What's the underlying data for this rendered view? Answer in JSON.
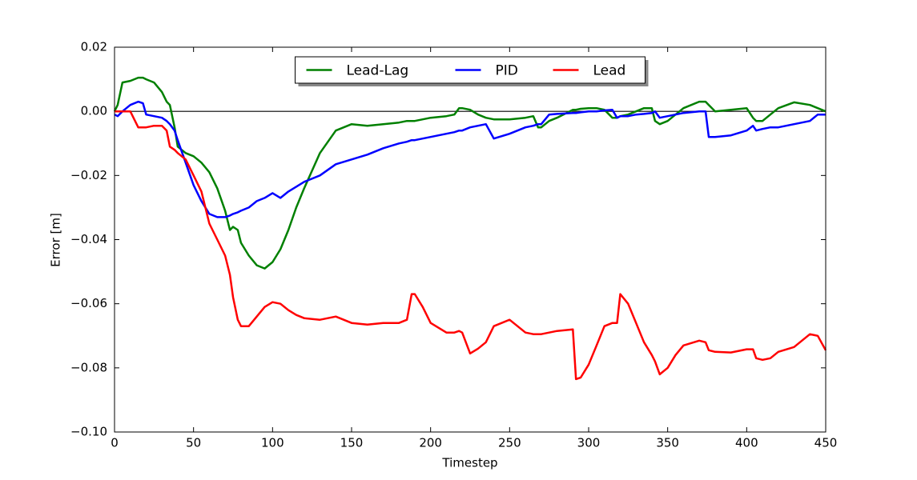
{
  "chart_data": {
    "type": "line",
    "xlabel": "Timestep",
    "ylabel": "Error [m]",
    "x": [
      0,
      2,
      5,
      10,
      15,
      18,
      20,
      25,
      30,
      33,
      35,
      38,
      40,
      45,
      50,
      55,
      60,
      65,
      70,
      73,
      75,
      78,
      80,
      85,
      90,
      95,
      100,
      105,
      110,
      115,
      120,
      130,
      140,
      150,
      160,
      170,
      180,
      185,
      188,
      190,
      195,
      200,
      210,
      215,
      218,
      220,
      225,
      230,
      235,
      240,
      250,
      260,
      265,
      268,
      270,
      275,
      280,
      290,
      292,
      295,
      300,
      305,
      310,
      315,
      318,
      320,
      325,
      330,
      335,
      340,
      342,
      345,
      350,
      355,
      360,
      370,
      374,
      376,
      380,
      390,
      400,
      404,
      406,
      410,
      415,
      420,
      430,
      440,
      445,
      450
    ],
    "series": [
      {
        "name": "Lead-Lag",
        "color": "#008000",
        "values": [
          0.0,
          0.002,
          0.009,
          0.0095,
          0.0105,
          0.0105,
          0.01,
          0.009,
          0.006,
          0.003,
          0.002,
          -0.005,
          -0.011,
          -0.013,
          -0.014,
          -0.016,
          -0.019,
          -0.024,
          -0.031,
          -0.037,
          -0.036,
          -0.037,
          -0.041,
          -0.045,
          -0.048,
          -0.049,
          -0.047,
          -0.043,
          -0.037,
          -0.03,
          -0.024,
          -0.013,
          -0.006,
          -0.004,
          -0.0045,
          -0.004,
          -0.0035,
          -0.003,
          -0.003,
          -0.003,
          -0.0025,
          -0.002,
          -0.0015,
          -0.001,
          0.001,
          0.001,
          0.0005,
          -0.001,
          -0.002,
          -0.0025,
          -0.0025,
          -0.002,
          -0.0015,
          -0.005,
          -0.005,
          -0.003,
          -0.002,
          0.0005,
          0.0005,
          0.0008,
          0.001,
          0.001,
          0.0005,
          -0.002,
          -0.002,
          -0.0015,
          -0.001,
          0.0,
          0.001,
          0.001,
          -0.003,
          -0.004,
          -0.003,
          -0.001,
          0.001,
          0.003,
          0.003,
          0.002,
          0.0,
          0.0005,
          0.001,
          -0.002,
          -0.003,
          -0.003,
          -0.001,
          0.001,
          0.0028,
          0.002,
          0.001,
          0.0
        ]
      },
      {
        "name": "PID",
        "color": "#0000ff",
        "values": [
          -0.001,
          -0.0015,
          0.0,
          0.002,
          0.003,
          0.0025,
          -0.001,
          -0.0015,
          -0.002,
          -0.003,
          -0.004,
          -0.006,
          -0.009,
          -0.016,
          -0.023,
          -0.028,
          -0.032,
          -0.033,
          -0.033,
          -0.0325,
          -0.032,
          -0.0315,
          -0.031,
          -0.03,
          -0.028,
          -0.027,
          -0.0255,
          -0.027,
          -0.025,
          -0.0235,
          -0.022,
          -0.02,
          -0.0165,
          -0.015,
          -0.0135,
          -0.0115,
          -0.01,
          -0.0095,
          -0.009,
          -0.009,
          -0.0085,
          -0.008,
          -0.007,
          -0.0065,
          -0.006,
          -0.006,
          -0.005,
          -0.0045,
          -0.004,
          -0.0085,
          -0.007,
          -0.005,
          -0.0045,
          -0.004,
          -0.004,
          -0.001,
          -0.0008,
          -0.0005,
          -0.0005,
          -0.0003,
          0.0,
          0.0,
          0.0003,
          0.0005,
          -0.002,
          -0.0015,
          -0.0015,
          -0.001,
          -0.0008,
          -0.0005,
          0.0,
          -0.002,
          -0.0015,
          -0.001,
          -0.0005,
          0.0,
          0.0,
          -0.008,
          -0.008,
          -0.0075,
          -0.006,
          -0.0045,
          -0.006,
          -0.0055,
          -0.005,
          -0.005,
          -0.004,
          -0.003,
          -0.001,
          -0.001
        ]
      },
      {
        "name": "Lead",
        "color": "#ff0000",
        "values": [
          0.0,
          0.0,
          0.0,
          0.0,
          -0.005,
          -0.005,
          -0.005,
          -0.0045,
          -0.0045,
          -0.006,
          -0.011,
          -0.012,
          -0.013,
          -0.015,
          -0.02,
          -0.025,
          -0.035,
          -0.04,
          -0.045,
          -0.051,
          -0.058,
          -0.065,
          -0.067,
          -0.067,
          -0.064,
          -0.061,
          -0.0595,
          -0.06,
          -0.062,
          -0.0635,
          -0.0645,
          -0.065,
          -0.064,
          -0.066,
          -0.0665,
          -0.066,
          -0.066,
          -0.065,
          -0.057,
          -0.057,
          -0.061,
          -0.066,
          -0.069,
          -0.069,
          -0.0685,
          -0.069,
          -0.0755,
          -0.074,
          -0.072,
          -0.067,
          -0.065,
          -0.069,
          -0.0695,
          -0.0695,
          -0.0695,
          -0.069,
          -0.0685,
          -0.068,
          -0.0835,
          -0.083,
          -0.079,
          -0.073,
          -0.067,
          -0.066,
          -0.066,
          -0.057,
          -0.06,
          -0.066,
          -0.072,
          -0.076,
          -0.078,
          -0.082,
          -0.08,
          -0.076,
          -0.073,
          -0.0715,
          -0.072,
          -0.0745,
          -0.075,
          -0.0752,
          -0.0742,
          -0.0742,
          -0.077,
          -0.0775,
          -0.077,
          -0.075,
          -0.0735,
          -0.0695,
          -0.07,
          -0.0745
        ]
      }
    ],
    "xlim": [
      0,
      450
    ],
    "xticks": [
      0,
      50,
      100,
      150,
      200,
      250,
      300,
      350,
      400,
      450
    ],
    "ylim": [
      -0.1,
      0.02
    ],
    "yticks": [
      {
        "value": -0.1,
        "label": "−0.10"
      },
      {
        "value": -0.08,
        "label": "−0.08"
      },
      {
        "value": -0.06,
        "label": "−0.06"
      },
      {
        "value": -0.04,
        "label": "−0.04"
      },
      {
        "value": -0.02,
        "label": "−0.02"
      },
      {
        "value": 0,
        "label": "0.00"
      },
      {
        "value": 0.02,
        "label": "0.02"
      }
    ],
    "legend": "upper center",
    "grid": false
  }
}
